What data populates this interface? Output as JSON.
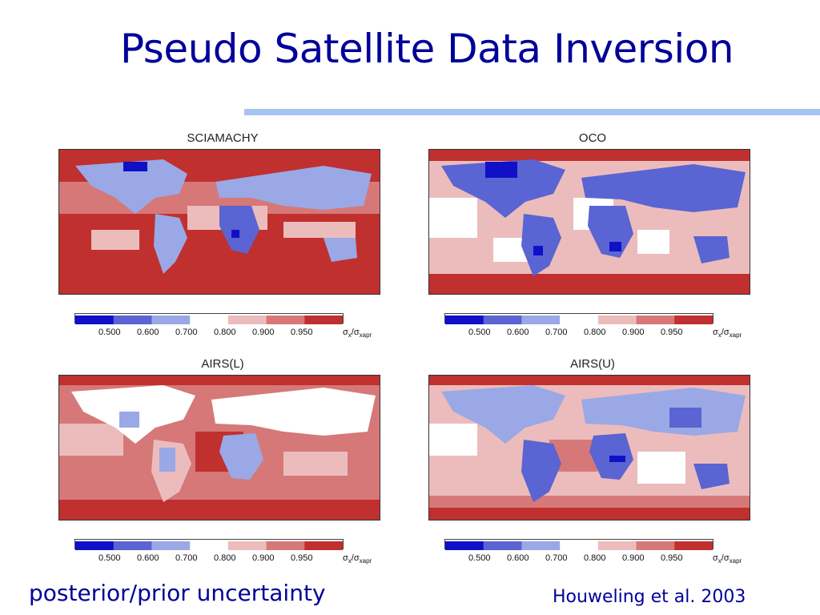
{
  "slide": {
    "title": "Pseudo Satellite Data Inversion",
    "footer_left": "posterior/prior uncertainty",
    "footer_right": "Houweling et al. 2003"
  },
  "colorbar": {
    "ticks": [
      "0.500",
      "0.600",
      "0.700",
      "0.800",
      "0.900",
      "0.950"
    ],
    "colors": [
      "#1010c8",
      "#5a64d2",
      "#9aa8e6",
      "#ffffff",
      "#ecbcbc",
      "#d67878",
      "#c0302e"
    ],
    "label_main": "σ",
    "label_sub1": "x",
    "label_sep": "/σ",
    "label_sub2": "xapr"
  },
  "panels": [
    {
      "title": "SCIAMACHY",
      "ocean_level": "high",
      "land_level": "low"
    },
    {
      "title": "OCO",
      "ocean_level": "mid",
      "land_level": "lowest"
    },
    {
      "title": "AIRS(L)",
      "ocean_level": "high",
      "land_level": "mid"
    },
    {
      "title": "AIRS(U)",
      "ocean_level": "mid",
      "land_level": "low"
    }
  ],
  "colors": {
    "title": "#000099",
    "accent_rule": "#a7c3f0"
  }
}
